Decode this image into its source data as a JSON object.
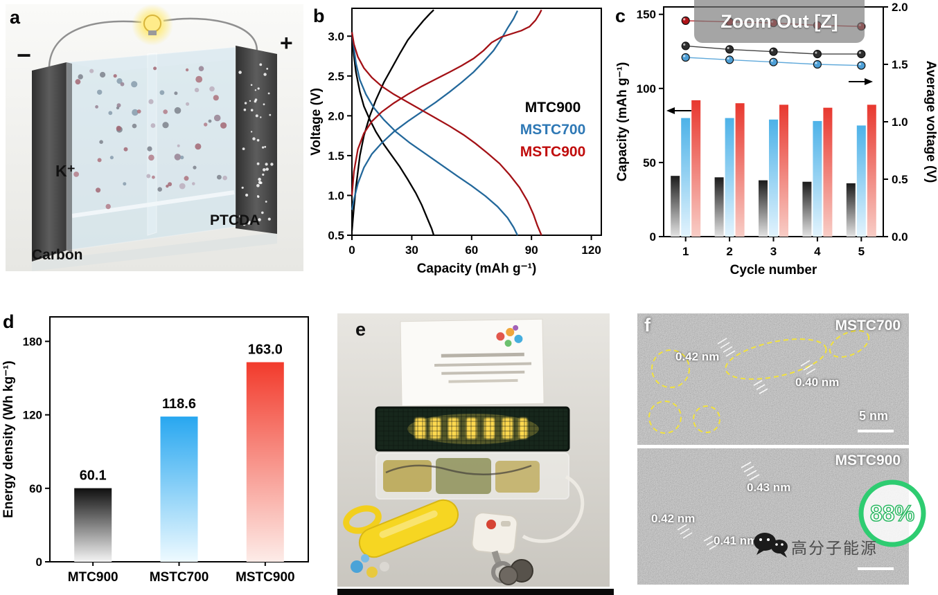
{
  "overlay": {
    "zoom_out_label": "Zoom Out [Z]"
  },
  "panel_a": {
    "label": "a",
    "negative_terminal": "−",
    "positive_terminal": "+",
    "ion_label": "K⁺",
    "cathode_label": "PTCDA",
    "anode_label": "Carbon"
  },
  "panel_b": {
    "label": "b"
  },
  "panel_c": {
    "label": "c"
  },
  "panel_d": {
    "label": "d"
  },
  "panel_e": {
    "label": "e"
  },
  "panel_f": {
    "label": "f",
    "tem_top": {
      "title": "MSTC700",
      "spacing_labels": [
        "0.42 nm",
        "0.40 nm"
      ],
      "scale_bar_label": "5 nm"
    },
    "tem_bottom": {
      "title": "MSTC900",
      "spacing_labels": [
        "0.43 nm",
        "0.42 nm",
        "0.41 nm"
      ]
    },
    "watermark": {
      "badge_text": "88%",
      "account_name": "高分子能源",
      "badge_color": "#2ecc71"
    }
  },
  "chart_data": [
    {
      "id": "b",
      "type": "line",
      "title": "",
      "xlabel": "Capacity (mAh g⁻¹)",
      "ylabel": "Voltage (V)",
      "xlim": [
        0,
        125
      ],
      "ylim": [
        0.5,
        3.35
      ],
      "xticks": [
        0,
        30,
        60,
        90,
        120
      ],
      "yticks": [
        0.5,
        1.0,
        1.5,
        2.0,
        2.5,
        3.0
      ],
      "legend": [
        {
          "name": "MTC900",
          "color": "#000000"
        },
        {
          "name": "MSTC700",
          "color": "#2e78b5"
        },
        {
          "name": "MSTC900",
          "color": "#c00c0c"
        }
      ],
      "series": [
        {
          "name": "MTC900-charge",
          "color": "#000000",
          "points": [
            [
              0,
              0.55
            ],
            [
              1,
              0.85
            ],
            [
              2,
              1.1
            ],
            [
              4,
              1.5
            ],
            [
              6,
              1.75
            ],
            [
              9,
              2.0
            ],
            [
              12,
              2.2
            ],
            [
              16,
              2.42
            ],
            [
              20,
              2.6
            ],
            [
              24,
              2.78
            ],
            [
              28,
              2.95
            ],
            [
              32,
              3.08
            ],
            [
              36,
              3.2
            ],
            [
              39,
              3.28
            ],
            [
              41,
              3.33
            ]
          ]
        },
        {
          "name": "MTC900-discharge",
          "color": "#000000",
          "points": [
            [
              0,
              3.05
            ],
            [
              0.5,
              2.9
            ],
            [
              1,
              2.75
            ],
            [
              2,
              2.55
            ],
            [
              4,
              2.3
            ],
            [
              6,
              2.12
            ],
            [
              9,
              1.95
            ],
            [
              12,
              1.8
            ],
            [
              16,
              1.64
            ],
            [
              20,
              1.5
            ],
            [
              24,
              1.36
            ],
            [
              28,
              1.2
            ],
            [
              32,
              1.03
            ],
            [
              35,
              0.88
            ],
            [
              38,
              0.7
            ],
            [
              40,
              0.58
            ],
            [
              41,
              0.5
            ]
          ]
        },
        {
          "name": "MSTC700-charge",
          "color": "#23689b",
          "points": [
            [
              0,
              0.82
            ],
            [
              1,
              0.95
            ],
            [
              3,
              1.15
            ],
            [
              6,
              1.35
            ],
            [
              10,
              1.52
            ],
            [
              15,
              1.66
            ],
            [
              21,
              1.8
            ],
            [
              28,
              1.93
            ],
            [
              35,
              2.05
            ],
            [
              42,
              2.17
            ],
            [
              49,
              2.3
            ],
            [
              55,
              2.42
            ],
            [
              61,
              2.55
            ],
            [
              66,
              2.68
            ],
            [
              71,
              2.82
            ],
            [
              75,
              2.97
            ],
            [
              78,
              3.1
            ],
            [
              81,
              3.22
            ],
            [
              83,
              3.32
            ]
          ]
        },
        {
          "name": "MSTC700-discharge",
          "color": "#23689b",
          "points": [
            [
              0,
              3.05
            ],
            [
              1,
              2.85
            ],
            [
              2,
              2.66
            ],
            [
              4,
              2.45
            ],
            [
              7,
              2.27
            ],
            [
              11,
              2.1
            ],
            [
              16,
              1.95
            ],
            [
              22,
              1.8
            ],
            [
              29,
              1.66
            ],
            [
              37,
              1.52
            ],
            [
              45,
              1.38
            ],
            [
              53,
              1.24
            ],
            [
              60,
              1.12
            ],
            [
              67,
              0.99
            ],
            [
              73,
              0.86
            ],
            [
              78,
              0.72
            ],
            [
              81,
              0.6
            ],
            [
              83,
              0.5
            ]
          ]
        },
        {
          "name": "MSTC900-charge",
          "color": "#a31116",
          "points": [
            [
              0,
              1.0
            ],
            [
              1,
              1.3
            ],
            [
              3,
              1.58
            ],
            [
              6,
              1.78
            ],
            [
              10,
              1.93
            ],
            [
              15,
              2.05
            ],
            [
              21,
              2.16
            ],
            [
              28,
              2.27
            ],
            [
              35,
              2.37
            ],
            [
              42,
              2.46
            ],
            [
              49,
              2.55
            ],
            [
              55,
              2.63
            ],
            [
              61,
              2.72
            ],
            [
              66,
              2.82
            ],
            [
              70,
              2.92
            ],
            [
              75,
              2.99
            ],
            [
              80,
              3.03
            ],
            [
              85,
              3.07
            ],
            [
              89,
              3.12
            ],
            [
              92,
              3.2
            ],
            [
              94,
              3.28
            ],
            [
              95,
              3.33
            ]
          ]
        },
        {
          "name": "MSTC900-discharge",
          "color": "#a31116",
          "points": [
            [
              0,
              3.05
            ],
            [
              1,
              2.9
            ],
            [
              3,
              2.74
            ],
            [
              6,
              2.6
            ],
            [
              10,
              2.48
            ],
            [
              15,
              2.37
            ],
            [
              21,
              2.27
            ],
            [
              28,
              2.17
            ],
            [
              35,
              2.07
            ],
            [
              42,
              1.97
            ],
            [
              49,
              1.87
            ],
            [
              56,
              1.76
            ],
            [
              62,
              1.65
            ],
            [
              68,
              1.53
            ],
            [
              74,
              1.4
            ],
            [
              79,
              1.26
            ],
            [
              84,
              1.1
            ],
            [
              88,
              0.93
            ],
            [
              91,
              0.76
            ],
            [
              93,
              0.62
            ],
            [
              95,
              0.5
            ]
          ]
        }
      ]
    },
    {
      "id": "c",
      "type": "bar+scatter",
      "xlabel": "Cycle number",
      "ylabel_left": "Capacity (mAh g⁻¹)",
      "ylabel_right": "Average voltage (V)",
      "categories": [
        1,
        2,
        3,
        4,
        5
      ],
      "ylim_left": [
        0,
        155
      ],
      "yticks_left": [
        0,
        50,
        100,
        150
      ],
      "ylim_right": [
        0,
        2.0
      ],
      "yticks_right": [
        0.0,
        0.5,
        1.0,
        1.5,
        2.0
      ],
      "bar_series": [
        {
          "name": "MTC900",
          "color_top": "#1c1c1c",
          "color_bottom": "#e3e3e3",
          "values": [
            41,
            40,
            38,
            37,
            36
          ]
        },
        {
          "name": "MSTC700",
          "color_top": "#4db2e8",
          "color_bottom": "#e2f3fd",
          "values": [
            80,
            80,
            79,
            78,
            75
          ]
        },
        {
          "name": "MSTC900",
          "color_top": "#e8382f",
          "color_bottom": "#f8cdc6",
          "values": [
            92,
            90,
            89,
            87,
            89
          ]
        }
      ],
      "voltage_series": [
        {
          "name": "MSTC900",
          "color": "#b01318",
          "values": [
            1.88,
            1.87,
            1.86,
            1.84,
            1.83
          ]
        },
        {
          "name": "MTC900",
          "color": "#2f2f2f",
          "values": [
            1.66,
            1.63,
            1.61,
            1.59,
            1.59
          ]
        },
        {
          "name": "MSTC700",
          "color": "#4d9fd6",
          "values": [
            1.56,
            1.54,
            1.52,
            1.5,
            1.49
          ]
        }
      ]
    },
    {
      "id": "d",
      "type": "bar",
      "ylabel": "Energy density (Wh kg⁻¹)",
      "categories": [
        "MTC900",
        "MSTC700",
        "MSTC900"
      ],
      "values": [
        60.1,
        118.6,
        163.0
      ],
      "value_labels": [
        "60.1",
        "118.6",
        "163.0"
      ],
      "ylim": [
        0,
        200
      ],
      "yticks": [
        0,
        60,
        120,
        180
      ],
      "bars": [
        {
          "color_top": "#0f0f0f",
          "color_bottom": "#f4f4f4"
        },
        {
          "color_top": "#28a7f0",
          "color_bottom": "#eefaff"
        },
        {
          "color_top": "#f23b2c",
          "color_bottom": "#fdece8"
        }
      ]
    }
  ]
}
